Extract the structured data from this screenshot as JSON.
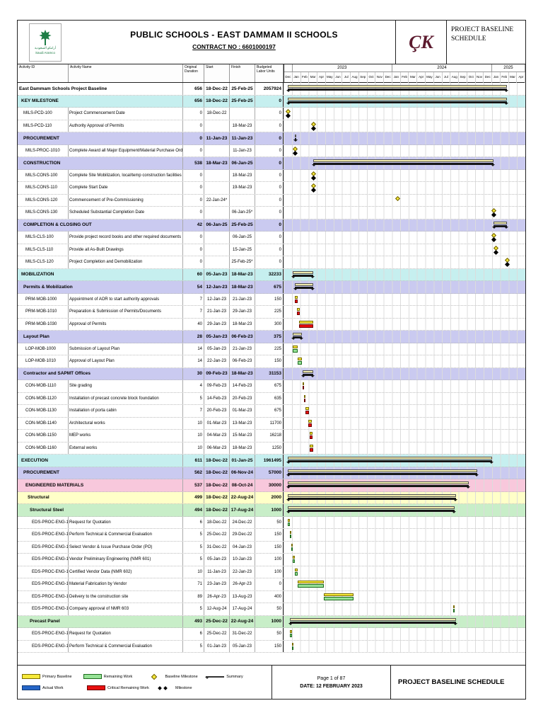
{
  "header": {
    "title": "PUBLIC SCHOOLS - EAST DAMMAM II SCHOOLS",
    "contract_no": "CONTRACT NO : 6601000197",
    "schedule_title": "PROJECT BASELINE SCHEDULE",
    "logo_text": "Saudi Aramco",
    "logo_arabic": "أرامكو السعودية",
    "logo_ck": "ÇK"
  },
  "columns": [
    "Activity ID",
    "Activity Name",
    "Original Duration",
    "Start",
    "Finish",
    "Budgeted Labor Units"
  ],
  "timeline": {
    "total_months": 29,
    "years": [
      {
        "label": "",
        "span": 1
      },
      {
        "label": "2023",
        "span": 12
      },
      {
        "label": "2024",
        "span": 12
      },
      {
        "label": "2025",
        "span": 4
      }
    ],
    "months": [
      "Dec",
      "Jan",
      "Feb",
      "Mar",
      "Apr",
      "May",
      "Jun",
      "Jul",
      "Aug",
      "Sep",
      "Oct",
      "Nov",
      "Dec",
      "Jan",
      "Feb",
      "Mar",
      "Apr",
      "May",
      "Jun",
      "Jul",
      "Aug",
      "Sep",
      "Oct",
      "Nov",
      "Dec",
      "Jan",
      "Feb",
      "Mar",
      "Apr"
    ]
  },
  "colors": {
    "baseline": "#f6e93a",
    "actual": "#2565c7",
    "remaining": "#96e296",
    "critical": "#e81010",
    "summary": "#161616",
    "milestone": "#000000",
    "band_cyan": "#c6efef",
    "band_lavender": "#cacaf0",
    "band_pink": "#f8c8dc",
    "band_yellow": "#ffffc8",
    "band_green": "#c8eec8"
  },
  "rows": [
    {
      "name": "East Dammam Schools Project Baseline",
      "group": true,
      "lvl": 0,
      "cls": "project",
      "dur": "656",
      "start": "18-Dec-22",
      "finish": "25-Feb-25",
      "units": "2057924",
      "bars": [
        {
          "t": "summary",
          "s": "18-Dec-22",
          "e": "25-Feb-25"
        }
      ]
    },
    {
      "name": "KEY MILESTONE",
      "group": true,
      "lvl": 1,
      "cls": "lc",
      "dur": "656",
      "start": "18-Dec-22",
      "finish": "25-Feb-25",
      "units": "0",
      "bars": [
        {
          "t": "summary",
          "s": "18-Dec-22",
          "e": "25-Feb-25"
        }
      ]
    },
    {
      "id": "MILS-PCD-100",
      "name": "Project Commencement Date",
      "lvl": 2,
      "dur": "0",
      "start": "18-Dec-22",
      "finish": "",
      "units": "0",
      "bars": [
        {
          "t": "bmile",
          "d": "18-Dec-22"
        },
        {
          "t": "mile",
          "d": "18-Dec-22"
        }
      ]
    },
    {
      "id": "MILS-PCD-110",
      "name": "Authority Approval of Permits",
      "lvl": 2,
      "dur": "0",
      "start": "",
      "finish": "18-Mar-23",
      "units": "0",
      "bars": [
        {
          "t": "bmile",
          "d": "18-Mar-23"
        },
        {
          "t": "mile",
          "d": "18-Mar-23"
        }
      ]
    },
    {
      "name": "PROCUREMENT",
      "group": true,
      "lvl": 2,
      "cls": "lv",
      "dur": "0",
      "start": "11-Jan-23",
      "finish": "11-Jan-23",
      "units": "0",
      "bars": [
        {
          "t": "summary",
          "s": "11-Jan-23",
          "e": "11-Jan-23"
        }
      ]
    },
    {
      "id": "MILS-PROC-1010",
      "name": "Complete Award all Major Equipment/Material Purchase Orders (PO's)",
      "lvl": 3,
      "dur": "0",
      "start": "",
      "finish": "11-Jan-23",
      "units": "0",
      "bars": [
        {
          "t": "bmile",
          "d": "11-Jan-23"
        },
        {
          "t": "mile",
          "d": "11-Jan-23"
        }
      ]
    },
    {
      "name": "CONSTRUCTION",
      "group": true,
      "lvl": 2,
      "cls": "lv",
      "dur": "538",
      "start": "18-Mar-23",
      "finish": "06-Jan-25",
      "units": "0",
      "bars": [
        {
          "t": "summary",
          "s": "18-Mar-23",
          "e": "06-Jan-25"
        }
      ]
    },
    {
      "id": "MILS-CONS-100",
      "name": "Complete Site Mobilization, local/temp construction facilities for startup",
      "lvl": 3,
      "dur": "0",
      "start": "",
      "finish": "18-Mar-23",
      "units": "0",
      "bars": [
        {
          "t": "bmile",
          "d": "18-Mar-23"
        },
        {
          "t": "mile",
          "d": "18-Mar-23"
        }
      ]
    },
    {
      "id": "MILS-CONS-110",
      "name": "Complete Start Date",
      "lvl": 3,
      "dur": "0",
      "start": "",
      "finish": "19-Mar-23",
      "units": "0",
      "bars": [
        {
          "t": "bmile",
          "d": "19-Mar-23"
        },
        {
          "t": "mile",
          "d": "19-Mar-23"
        }
      ]
    },
    {
      "id": "MILS-CONS-120",
      "name": "Commencement of Pre-Commissioning",
      "lvl": 3,
      "dur": "0",
      "start": "22-Jan-24*",
      "finish": "",
      "units": "0",
      "bars": [
        {
          "t": "bmile",
          "d": "22-Jan-24"
        }
      ]
    },
    {
      "id": "MILS-CONS-130",
      "name": "Scheduled Substantial Completion Date",
      "lvl": 3,
      "dur": "0",
      "start": "",
      "finish": "06-Jan-25*",
      "units": "0",
      "bars": [
        {
          "t": "bmile",
          "d": "06-Jan-25"
        },
        {
          "t": "mile",
          "d": "06-Jan-25"
        }
      ]
    },
    {
      "name": "COMPLETION & CLOSING OUT",
      "group": true,
      "lvl": 2,
      "cls": "lv",
      "dur": "42",
      "start": "06-Jan-25",
      "finish": "25-Feb-25",
      "units": "0",
      "bars": [
        {
          "t": "summary",
          "s": "06-Jan-25",
          "e": "25-Feb-25"
        }
      ]
    },
    {
      "id": "MILS-CLS-100",
      "name": "Provide project record books and other required documents",
      "lvl": 3,
      "dur": "0",
      "start": "",
      "finish": "06-Jan-25",
      "units": "0",
      "bars": [
        {
          "t": "bmile",
          "d": "06-Jan-25"
        },
        {
          "t": "mile",
          "d": "06-Jan-25"
        }
      ]
    },
    {
      "id": "MILS-CLS-110",
      "name": "Provide all As-Built Drawings",
      "lvl": 3,
      "dur": "0",
      "start": "",
      "finish": "15-Jan-25",
      "units": "0",
      "bars": [
        {
          "t": "bmile",
          "d": "15-Jan-25"
        },
        {
          "t": "mile",
          "d": "15-Jan-25"
        }
      ]
    },
    {
      "id": "MILS-CLS-120",
      "name": "Project Completion and Demobilization",
      "lvl": 3,
      "dur": "0",
      "start": "",
      "finish": "25-Feb-25*",
      "units": "0",
      "bars": [
        {
          "t": "bmile",
          "d": "25-Feb-25"
        },
        {
          "t": "mile",
          "d": "25-Feb-25"
        }
      ]
    },
    {
      "name": "MOBILIZATION",
      "group": true,
      "lvl": 1,
      "cls": "lc",
      "dur": "60",
      "start": "05-Jan-23",
      "finish": "18-Mar-23",
      "units": "32233",
      "bars": [
        {
          "t": "summary",
          "s": "05-Jan-23",
          "e": "18-Mar-23"
        }
      ]
    },
    {
      "name": "Permits & Mobilization",
      "group": true,
      "lvl": 2,
      "cls": "lv",
      "dur": "54",
      "start": "12-Jan-23",
      "finish": "18-Mar-23",
      "units": "675",
      "bars": [
        {
          "t": "summary",
          "s": "12-Jan-23",
          "e": "18-Mar-23"
        }
      ]
    },
    {
      "id": "PRM-MOB-1000",
      "name": "Appointment of AOR to start authority approvals",
      "lvl": 3,
      "dur": "7",
      "start": "12-Jan-23",
      "finish": "21-Jan-23",
      "units": "150",
      "bars": [
        {
          "t": "base",
          "s": "12-Jan-23",
          "e": "21-Jan-23"
        },
        {
          "t": "crit",
          "s": "12-Jan-23",
          "e": "21-Jan-23"
        }
      ]
    },
    {
      "id": "PRM-MOB-1010",
      "name": "Preparation & Submission of Permits/Documents",
      "lvl": 3,
      "dur": "7",
      "start": "21-Jan-23",
      "finish": "29-Jan-23",
      "units": "225",
      "bars": [
        {
          "t": "base",
          "s": "21-Jan-23",
          "e": "29-Jan-23"
        },
        {
          "t": "crit",
          "s": "21-Jan-23",
          "e": "29-Jan-23"
        }
      ]
    },
    {
      "id": "PRM-MOB-1030",
      "name": "Approval of Permits",
      "lvl": 3,
      "dur": "40",
      "start": "29-Jan-23",
      "finish": "18-Mar-23",
      "units": "300",
      "bars": [
        {
          "t": "base",
          "s": "29-Jan-23",
          "e": "18-Mar-23"
        },
        {
          "t": "crit",
          "s": "29-Jan-23",
          "e": "18-Mar-23"
        }
      ]
    },
    {
      "name": "Layout Plan",
      "group": true,
      "lvl": 2,
      "cls": "lv",
      "dur": "28",
      "start": "05-Jan-23",
      "finish": "06-Feb-23",
      "units": "375",
      "bars": [
        {
          "t": "summary",
          "s": "05-Jan-23",
          "e": "06-Feb-23"
        }
      ]
    },
    {
      "id": "LOP-MOB-1000",
      "name": "Submission of Layout Plan",
      "lvl": 3,
      "dur": "14",
      "start": "05-Jan-23",
      "finish": "21-Jan-23",
      "units": "225",
      "bars": [
        {
          "t": "base",
          "s": "05-Jan-23",
          "e": "21-Jan-23"
        },
        {
          "t": "rem",
          "s": "05-Jan-23",
          "e": "21-Jan-23"
        }
      ]
    },
    {
      "id": "LOP-MOB-1010",
      "name": "Approval of Layout Plan",
      "lvl": 3,
      "dur": "14",
      "start": "22-Jan-23",
      "finish": "06-Feb-23",
      "units": "150",
      "bars": [
        {
          "t": "base",
          "s": "22-Jan-23",
          "e": "06-Feb-23"
        },
        {
          "t": "rem",
          "s": "22-Jan-23",
          "e": "06-Feb-23"
        }
      ]
    },
    {
      "name": "Contractor and SAPMT Offices",
      "group": true,
      "lvl": 2,
      "cls": "lv",
      "dur": "30",
      "start": "09-Feb-23",
      "finish": "18-Mar-23",
      "units": "31153",
      "bars": [
        {
          "t": "summary",
          "s": "09-Feb-23",
          "e": "18-Mar-23"
        }
      ]
    },
    {
      "id": "CON-MOB-1110",
      "name": "Site grading",
      "lvl": 3,
      "dur": "4",
      "start": "09-Feb-23",
      "finish": "14-Feb-23",
      "units": "675",
      "bars": [
        {
          "t": "base",
          "s": "09-Feb-23",
          "e": "14-Feb-23"
        },
        {
          "t": "crit",
          "s": "09-Feb-23",
          "e": "14-Feb-23"
        }
      ]
    },
    {
      "id": "CON-MOB-1120",
      "name": "Installation of precast concrete block foundation",
      "lvl": 3,
      "dur": "5",
      "start": "14-Feb-23",
      "finish": "20-Feb-23",
      "units": "635",
      "bars": [
        {
          "t": "base",
          "s": "14-Feb-23",
          "e": "20-Feb-23"
        },
        {
          "t": "crit",
          "s": "14-Feb-23",
          "e": "20-Feb-23"
        }
      ]
    },
    {
      "id": "CON-MOB-1130",
      "name": "Installation of porta cabin",
      "lvl": 3,
      "dur": "7",
      "start": "20-Feb-23",
      "finish": "01-Mar-23",
      "units": "675",
      "bars": [
        {
          "t": "base",
          "s": "20-Feb-23",
          "e": "01-Mar-23"
        },
        {
          "t": "crit",
          "s": "20-Feb-23",
          "e": "01-Mar-23"
        }
      ]
    },
    {
      "id": "CON-MOB-1140",
      "name": "Architectural works",
      "lvl": 3,
      "dur": "10",
      "start": "01-Mar-23",
      "finish": "13-Mar-23",
      "units": "11700",
      "bars": [
        {
          "t": "base",
          "s": "01-Mar-23",
          "e": "13-Mar-23"
        },
        {
          "t": "crit",
          "s": "01-Mar-23",
          "e": "13-Mar-23"
        }
      ]
    },
    {
      "id": "CON-MOB-1150",
      "name": "MEP works",
      "lvl": 3,
      "dur": "10",
      "start": "04-Mar-23",
      "finish": "15-Mar-23",
      "units": "16218",
      "bars": [
        {
          "t": "base",
          "s": "04-Mar-23",
          "e": "15-Mar-23"
        },
        {
          "t": "crit",
          "s": "04-Mar-23",
          "e": "15-Mar-23"
        }
      ]
    },
    {
      "id": "CON-MOB-1160",
      "name": "External works",
      "lvl": 3,
      "dur": "10",
      "start": "06-Mar-23",
      "finish": "18-Mar-23",
      "units": "1250",
      "bars": [
        {
          "t": "base",
          "s": "06-Mar-23",
          "e": "18-Mar-23"
        },
        {
          "t": "crit",
          "s": "06-Mar-23",
          "e": "18-Mar-23"
        }
      ]
    },
    {
      "name": "EXECUTION",
      "group": true,
      "lvl": 1,
      "cls": "lc",
      "dur": "611",
      "start": "18-Dec-22",
      "finish": "01-Jan-25",
      "units": "1961495",
      "bars": [
        {
          "t": "summary",
          "s": "18-Dec-22",
          "e": "01-Jan-25"
        }
      ]
    },
    {
      "name": "PROCUREMENT",
      "group": true,
      "lvl": 2,
      "cls": "lv",
      "dur": "562",
      "start": "18-Dec-22",
      "finish": "06-Nov-24",
      "units": "57000",
      "bars": [
        {
          "t": "summary",
          "s": "18-Dec-22",
          "e": "06-Nov-24"
        }
      ]
    },
    {
      "name": "ENGINEERED MATERIALS",
      "group": true,
      "lvl": 3,
      "cls": "lp",
      "dur": "537",
      "start": "18-Dec-22",
      "finish": "08-Oct-24",
      "units": "30000",
      "bars": [
        {
          "t": "summary",
          "s": "18-Dec-22",
          "e": "08-Oct-24"
        }
      ]
    },
    {
      "name": "Structural",
      "group": true,
      "lvl": 4,
      "cls": "ly",
      "dur": "499",
      "start": "18-Dec-22",
      "finish": "22-Aug-24",
      "units": "2000",
      "bars": [
        {
          "t": "summary",
          "s": "18-Dec-22",
          "e": "22-Aug-24"
        }
      ]
    },
    {
      "name": "Structural Steel",
      "group": true,
      "lvl": 5,
      "cls": "lg",
      "dur": "494",
      "start": "18-Dec-22",
      "finish": "17-Aug-24",
      "units": "1000",
      "bars": [
        {
          "t": "summary",
          "s": "18-Dec-22",
          "e": "17-Aug-24"
        }
      ]
    },
    {
      "id": "EDS-PROC-ENG-1000",
      "name": "Request for Quotation",
      "lvl": 6,
      "dur": "6",
      "start": "18-Dec-22",
      "finish": "24-Dec-22",
      "units": "50",
      "bars": [
        {
          "t": "base",
          "s": "18-Dec-22",
          "e": "24-Dec-22"
        },
        {
          "t": "rem",
          "s": "18-Dec-22",
          "e": "24-Dec-22"
        }
      ]
    },
    {
      "id": "EDS-PROC-ENG-1010",
      "name": "Perform Technical & Commercial Evaluation",
      "lvl": 6,
      "dur": "5",
      "start": "25-Dec-22",
      "finish": "29-Dec-22",
      "units": "150",
      "bars": [
        {
          "t": "base",
          "s": "25-Dec-22",
          "e": "29-Dec-22"
        },
        {
          "t": "rem",
          "s": "25-Dec-22",
          "e": "29-Dec-22"
        }
      ]
    },
    {
      "id": "EDS-PROC-ENG-1020",
      "name": "Select Vendor & Issue Purchase Order (PO)",
      "lvl": 6,
      "dur": "5",
      "start": "31-Dec-22",
      "finish": "04-Jan-23",
      "units": "150",
      "bars": [
        {
          "t": "base",
          "s": "31-Dec-22",
          "e": "04-Jan-23"
        },
        {
          "t": "rem",
          "s": "31-Dec-22",
          "e": "04-Jan-23"
        }
      ]
    },
    {
      "id": "EDS-PROC-ENG-1030",
      "name": "Vendor Preliminary Engineering (NMR 601)",
      "lvl": 6,
      "dur": "5",
      "start": "05-Jan-23",
      "finish": "10-Jan-23",
      "units": "100",
      "bars": [
        {
          "t": "base",
          "s": "05-Jan-23",
          "e": "10-Jan-23"
        },
        {
          "t": "rem",
          "s": "05-Jan-23",
          "e": "10-Jan-23"
        }
      ]
    },
    {
      "id": "EDS-PROC-ENG-1040",
      "name": "Certified Vendor Data (NMR 602)",
      "lvl": 6,
      "dur": "10",
      "start": "11-Jan-23",
      "finish": "22-Jan-23",
      "units": "100",
      "bars": [
        {
          "t": "base",
          "s": "11-Jan-23",
          "e": "22-Jan-23"
        },
        {
          "t": "rem",
          "s": "11-Jan-23",
          "e": "22-Jan-23"
        }
      ]
    },
    {
      "id": "EDS-PROC-ENG-1050",
      "name": "Material Fabrication by Vendor",
      "lvl": 6,
      "dur": "71",
      "start": "23-Jan-23",
      "finish": "26-Apr-23",
      "units": "0",
      "bars": [
        {
          "t": "base",
          "s": "23-Jan-23",
          "e": "26-Apr-23"
        },
        {
          "t": "rem",
          "s": "23-Jan-23",
          "e": "26-Apr-23"
        }
      ]
    },
    {
      "id": "EDS-PROC-ENG-1060",
      "name": "Delivery to the construction site",
      "lvl": 6,
      "dur": "89",
      "start": "26-Apr-23",
      "finish": "13-Aug-23",
      "units": "400",
      "bars": [
        {
          "t": "base",
          "s": "26-Apr-23",
          "e": "13-Aug-23"
        },
        {
          "t": "rem",
          "s": "26-Apr-23",
          "e": "13-Aug-23"
        }
      ]
    },
    {
      "id": "EDS-PROC-ENG-1070",
      "name": "Company approval of NMR 603",
      "lvl": 6,
      "dur": "5",
      "start": "12-Aug-24",
      "finish": "17-Aug-24",
      "units": "50",
      "bars": [
        {
          "t": "base",
          "s": "12-Aug-24",
          "e": "17-Aug-24"
        },
        {
          "t": "rem",
          "s": "12-Aug-24",
          "e": "17-Aug-24"
        }
      ]
    },
    {
      "name": "Precast Panel",
      "group": true,
      "lvl": 5,
      "cls": "lg",
      "dur": "493",
      "start": "25-Dec-22",
      "finish": "22-Aug-24",
      "units": "1000",
      "bars": [
        {
          "t": "summary",
          "s": "25-Dec-22",
          "e": "22-Aug-24"
        }
      ]
    },
    {
      "id": "EDS-PROC-ENG-1080",
      "name": "Request for Quotation",
      "lvl": 6,
      "dur": "6",
      "start": "25-Dec-22",
      "finish": "31-Dec-22",
      "units": "50",
      "bars": [
        {
          "t": "base",
          "s": "25-Dec-22",
          "e": "31-Dec-22"
        },
        {
          "t": "rem",
          "s": "25-Dec-22",
          "e": "31-Dec-22"
        }
      ]
    },
    {
      "id": "EDS-PROC-ENG-1090",
      "name": "Perform Technical & Commercial Evaluation",
      "lvl": 6,
      "dur": "5",
      "start": "01-Jan-23",
      "finish": "05-Jan-23",
      "units": "150",
      "bars": [
        {
          "t": "base",
          "s": "01-Jan-23",
          "e": "05-Jan-23"
        },
        {
          "t": "rem",
          "s": "01-Jan-23",
          "e": "05-Jan-23"
        }
      ]
    }
  ],
  "footer": {
    "legend_rows": [
      [
        {
          "label": "Primary Baseline",
          "swatch": "baseline"
        },
        {
          "label": "Remaining Work",
          "swatch": "remaining"
        },
        {
          "label": "Baseline Milestone",
          "swatch": "bmilestone"
        },
        {
          "label": "Summary",
          "swatch": "summary"
        }
      ],
      [
        {
          "label": "Actual Work",
          "swatch": "actual"
        },
        {
          "label": "Critical Remaining Work",
          "swatch": "critical"
        },
        {
          "label": "Milestone",
          "swatch": "milestone"
        }
      ]
    ],
    "page": "Page 1 of 87",
    "date": "DATE: 12 FEBRUARY 2023",
    "title": "PROJECT BASELINE SCHEDULE"
  }
}
